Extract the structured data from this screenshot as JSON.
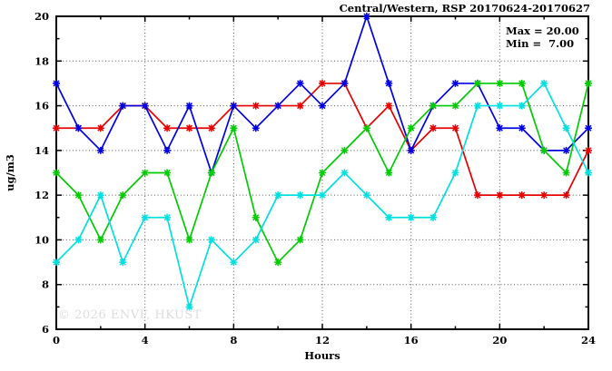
{
  "title": "Central/Western, RSP 20170624-20170627",
  "annotation": {
    "max_label": "Max = 20.00",
    "min_label": "Min =  7.00"
  },
  "watermark": "© 2026 ENVF, HKUST",
  "chart_data": {
    "type": "line",
    "title": "Central/Western, RSP 20170624-20170627",
    "xlabel": "Hours",
    "ylabel": "ug/m3",
    "xlim": [
      0,
      24
    ],
    "ylim": [
      6,
      20
    ],
    "x_major_ticks": [
      0,
      4,
      8,
      12,
      16,
      20,
      24
    ],
    "x_minor_step": 2,
    "y_major_ticks": [
      6,
      8,
      10,
      12,
      14,
      16,
      18,
      20
    ],
    "y_minor_step": 1,
    "grid": true,
    "legend": "none",
    "max_value": 20.0,
    "min_value": 7.0,
    "x": [
      0,
      1,
      2,
      3,
      4,
      5,
      6,
      7,
      8,
      9,
      10,
      11,
      12,
      13,
      14,
      15,
      16,
      17,
      18,
      19,
      20,
      21,
      22,
      23,
      24
    ],
    "series": [
      {
        "name": "red",
        "color": "#e60000",
        "values": [
          15,
          15,
          15,
          16,
          16,
          15,
          15,
          15,
          16,
          16,
          16,
          16,
          17,
          17,
          15,
          16,
          14,
          15,
          15,
          12,
          12,
          12,
          12,
          12,
          14
        ]
      },
      {
        "name": "blue",
        "color": "#0000e6",
        "values": [
          17,
          15,
          14,
          16,
          16,
          14,
          16,
          13,
          16,
          15,
          16,
          17,
          16,
          17,
          20,
          17,
          14,
          16,
          17,
          17,
          15,
          15,
          14,
          14,
          15
        ]
      },
      {
        "name": "green",
        "color": "#00cc00",
        "values": [
          13,
          12,
          10,
          12,
          13,
          13,
          10,
          13,
          15,
          11,
          9,
          10,
          13,
          14,
          15,
          13,
          15,
          16,
          16,
          17,
          17,
          17,
          14,
          13,
          17
        ]
      },
      {
        "name": "cyan",
        "color": "#00e0e0",
        "values": [
          9,
          10,
          12,
          9,
          11,
          11,
          7,
          10,
          9,
          10,
          12,
          12,
          12,
          13,
          12,
          11,
          11,
          11,
          13,
          16,
          16,
          16,
          17,
          15,
          13
        ]
      }
    ]
  }
}
